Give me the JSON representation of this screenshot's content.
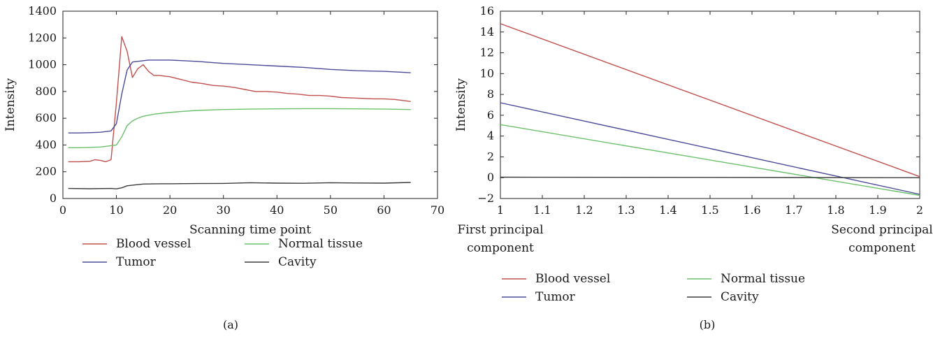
{
  "chart_data": [
    {
      "type": "line",
      "panel_label": "(a)",
      "xlabel": "Scanning time point",
      "ylabel": "Intensity",
      "xlim": [
        0,
        70
      ],
      "ylim": [
        0,
        1400
      ],
      "xticks": [
        0,
        10,
        20,
        30,
        40,
        50,
        60,
        70
      ],
      "yticks": [
        0,
        200,
        400,
        600,
        800,
        1000,
        1200,
        1400
      ],
      "grid": false,
      "legend_position": "below",
      "series": [
        {
          "name": "Blood vessel",
          "color": "#c0504d",
          "x": [
            1,
            3,
            5,
            6,
            7,
            8,
            9,
            10,
            11,
            12,
            13,
            14,
            15,
            16,
            17,
            18,
            20,
            22,
            24,
            26,
            28,
            30,
            32,
            34,
            36,
            38,
            40,
            42,
            44,
            46,
            48,
            50,
            52,
            55,
            58,
            60,
            62,
            65
          ],
          "y": [
            275,
            275,
            278,
            290,
            285,
            275,
            290,
            720,
            1210,
            1100,
            905,
            970,
            1000,
            950,
            920,
            920,
            910,
            890,
            870,
            860,
            845,
            840,
            830,
            815,
            800,
            800,
            795,
            785,
            780,
            770,
            770,
            765,
            755,
            750,
            745,
            745,
            740,
            725
          ]
        },
        {
          "name": "Tumor",
          "color": "#4b4b9a",
          "x": [
            1,
            3,
            5,
            7,
            9,
            10,
            11,
            12,
            13,
            14,
            16,
            18,
            20,
            25,
            30,
            35,
            40,
            45,
            50,
            55,
            60,
            65
          ],
          "y": [
            490,
            490,
            492,
            495,
            505,
            560,
            780,
            960,
            1020,
            1025,
            1035,
            1035,
            1035,
            1025,
            1010,
            1000,
            990,
            980,
            965,
            955,
            950,
            940
          ]
        },
        {
          "name": "Normal tissue",
          "color": "#6cc06c",
          "x": [
            1,
            3,
            5,
            7,
            9,
            10,
            11,
            12,
            13,
            14,
            15,
            17,
            19,
            22,
            25,
            30,
            35,
            40,
            45,
            50,
            55,
            60,
            65
          ],
          "y": [
            380,
            380,
            382,
            385,
            395,
            400,
            460,
            545,
            580,
            600,
            615,
            630,
            640,
            650,
            658,
            665,
            668,
            670,
            672,
            672,
            670,
            668,
            665
          ]
        },
        {
          "name": "Cavity",
          "color": "#3c3c3c",
          "x": [
            1,
            5,
            9,
            10,
            11,
            12,
            13,
            15,
            18,
            20,
            25,
            30,
            35,
            40,
            45,
            50,
            55,
            60,
            65
          ],
          "y": [
            75,
            73,
            75,
            72,
            80,
            95,
            100,
            108,
            110,
            110,
            112,
            113,
            118,
            115,
            114,
            118,
            116,
            115,
            120
          ]
        }
      ]
    },
    {
      "type": "line",
      "panel_label": "(b)",
      "ylabel": "Intensity",
      "x_endpoint_labels": [
        "First principal component",
        "Second principal component"
      ],
      "xlim": [
        1,
        2
      ],
      "ylim": [
        -2,
        16
      ],
      "xticks": [
        "1",
        "1.1",
        "1.2",
        "1.3",
        "1.4",
        "1.5",
        "1.6",
        "1.7",
        "1.8",
        "1.9",
        "2"
      ],
      "yticks": [
        -2,
        0,
        2,
        4,
        6,
        8,
        10,
        12,
        14,
        16
      ],
      "grid": false,
      "legend_position": "below",
      "series": [
        {
          "name": "Blood vessel",
          "color": "#c0504d",
          "x": [
            1,
            2
          ],
          "y": [
            14.8,
            0.1
          ]
        },
        {
          "name": "Tumor",
          "color": "#4b4b9a",
          "x": [
            1,
            2
          ],
          "y": [
            7.2,
            -1.6
          ]
        },
        {
          "name": "Normal tissue",
          "color": "#6cc06c",
          "x": [
            1,
            2
          ],
          "y": [
            5.1,
            -1.7
          ]
        },
        {
          "name": "Cavity",
          "color": "#3c3c3c",
          "x": [
            1,
            2
          ],
          "y": [
            0.05,
            0.0
          ]
        }
      ]
    }
  ]
}
